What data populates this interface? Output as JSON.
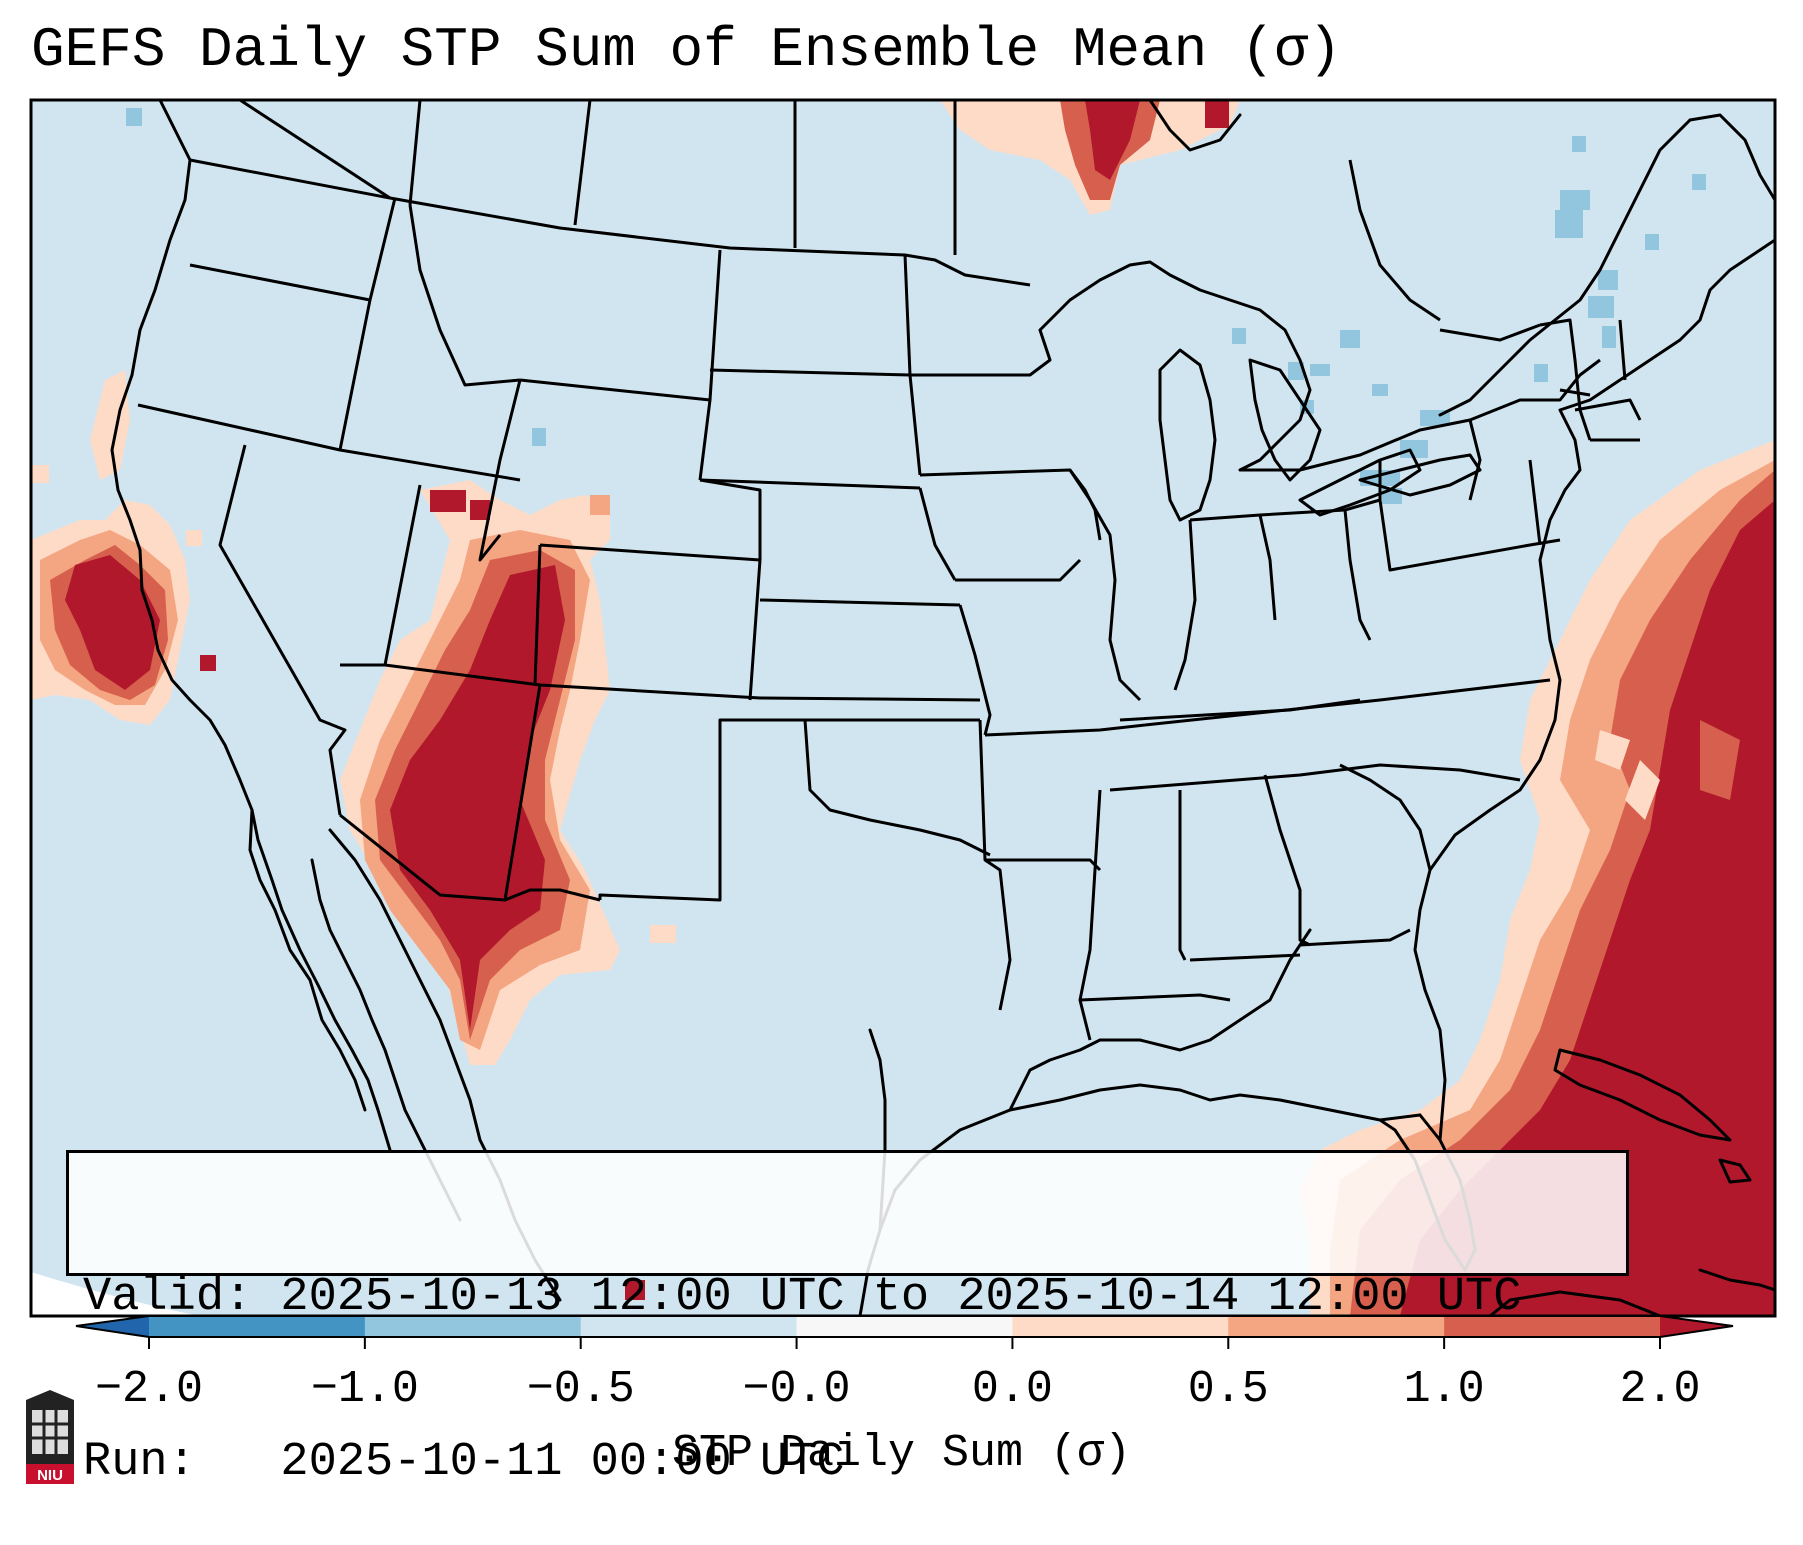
{
  "title": "GEFS Daily STP Sum of Ensemble Mean (σ)",
  "info": {
    "valid_line": "Valid: 2025-10-13 12:00 UTC to 2025-10-14 12:00 UTC",
    "run_line": "Run:   2025-10-11 00:00 UTC"
  },
  "colorbar": {
    "label": "STP Daily Sum (σ)",
    "ticks": [
      "−2.0",
      "−1.0",
      "−0.5",
      "−0.0",
      "0.0",
      "0.5",
      "1.0",
      "2.0"
    ],
    "colors": [
      "#2166ac",
      "#4393c3",
      "#92c5de",
      "#d1e5f0",
      "#f7f7f7",
      "#fddbc7",
      "#f4a582",
      "#d6604d",
      "#b2182b"
    ]
  },
  "logo": {
    "text": "NIU"
  },
  "colors": {
    "map_background": "#d1e5f0",
    "positive_dark": "#b2182b",
    "positive_mid": "#d6604d",
    "positive_light": "#f4a582",
    "positive_pale": "#fddbc7",
    "negative_light": "#92c5de"
  }
}
